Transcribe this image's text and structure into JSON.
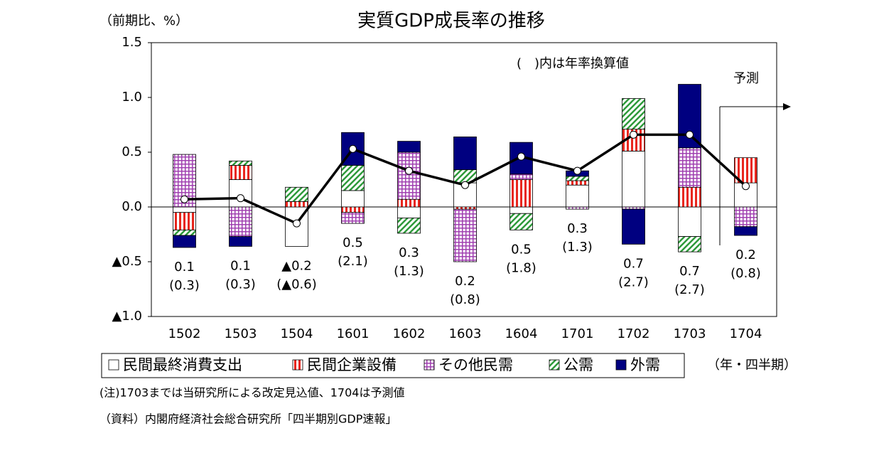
{
  "chart_data": {
    "type": "stacked_bar_line",
    "title": "実質GDP成長率の推移",
    "y_axis_label": "（前期比、%）",
    "x_axis_label": "（年・四半期）",
    "annotation": "(　)内は年率換算値",
    "forecast_label": "予測",
    "notes": [
      "(注)1703までは当研究所による改定見込値、1704は予測値",
      "（資料）内閣府経済社会総合研究所「四半期別GDP速報」"
    ],
    "categories": [
      "1502",
      "1503",
      "1504",
      "1601",
      "1602",
      "1603",
      "1604",
      "1701",
      "1702",
      "1703",
      "1704"
    ],
    "ylim": [
      -1.0,
      1.5
    ],
    "yticks": [
      {
        "value": -1.0,
        "label": "▲1.0"
      },
      {
        "value": -0.5,
        "label": "▲0.5"
      },
      {
        "value": 0.0,
        "label": "0.0"
      },
      {
        "value": 0.5,
        "label": "0.5"
      },
      {
        "value": 1.0,
        "label": "1.0"
      },
      1.5
    ],
    "series": [
      {
        "name": "民間最終消費支出",
        "color": "#ffffff",
        "fill_pattern": "solid",
        "values": [
          -0.05,
          0.25,
          -0.36,
          0.15,
          -0.1,
          0.22,
          -0.06,
          0.2,
          0.51,
          -0.27,
          0.22
        ]
      },
      {
        "name": "民間企業設備",
        "color": "#e8261d",
        "fill_pattern": "vertical",
        "values": [
          -0.16,
          0.13,
          0.05,
          -0.05,
          0.07,
          -0.02,
          0.25,
          0.04,
          0.2,
          0.18,
          0.23
        ]
      },
      {
        "name": "その他民需",
        "color": "#a040b0",
        "fill_pattern": "grid",
        "values": [
          0.48,
          -0.27,
          0,
          -0.1,
          0.43,
          -0.48,
          0.05,
          -0.02,
          -0.02,
          0.36,
          -0.18
        ]
      },
      {
        "name": "公需",
        "color": "#2e9a3a",
        "fill_pattern": "diagonal",
        "values": [
          -0.05,
          0.04,
          0.13,
          0.23,
          -0.14,
          0.12,
          -0.15,
          0.04,
          0.28,
          -0.14,
          0
        ]
      },
      {
        "name": "外需",
        "color": "#000080",
        "fill_pattern": "solid",
        "values": [
          -0.11,
          -0.09,
          0,
          0.3,
          0.1,
          0.3,
          0.29,
          0.05,
          -0.32,
          0.58,
          -0.08
        ]
      }
    ],
    "line": {
      "color": "#000000",
      "values": [
        0.07,
        0.08,
        -0.15,
        0.53,
        0.33,
        0.2,
        0.46,
        0.33,
        0.66,
        0.66,
        0.19
      ],
      "value_labels": [
        "0.1",
        "0.1",
        "▲0.2",
        "0.5",
        "0.3",
        "0.2",
        "0.5",
        "0.3",
        "0.7",
        "0.7",
        "0.2"
      ]
    },
    "annualized_labels": [
      "(0.3)",
      "(0.3)",
      "(▲0.6)",
      "(2.1)",
      "(1.3)",
      "(0.8)",
      "(1.8)",
      "(1.3)",
      "(2.7)",
      "(2.7)",
      "(0.8)"
    ]
  }
}
